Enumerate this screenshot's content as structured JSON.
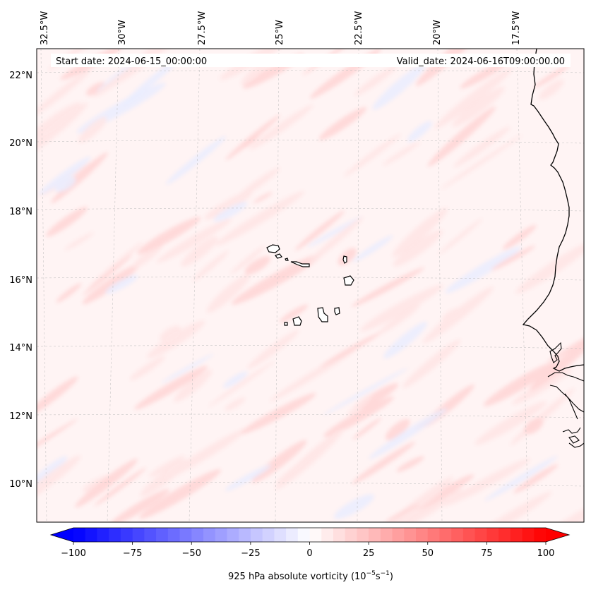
{
  "map": {
    "start_label": "Start date: 2024-06-15_00:00:00",
    "valid_label": "Valid_date: 2024-06-16T09:00:00.00",
    "lon_labels": [
      "32.5°W",
      "30°W",
      "27.5°W",
      "25°W",
      "22.5°W",
      "20°W",
      "17.5°W"
    ],
    "lat_labels": [
      "22°N",
      "20°N",
      "18°N",
      "16°N",
      "14°N",
      "12°N",
      "10°N"
    ],
    "colors": {
      "positive": "#ff0000",
      "negative": "#0000ff",
      "background_field": "#fff4f4",
      "coastline": "#000000"
    }
  },
  "colorbar": {
    "label_prefix": "925 hPa absolute vorticity (10",
    "label_exp1": "−5",
    "label_mid": "s",
    "label_exp2": "−1",
    "label_suffix": ")",
    "range": [
      -100,
      100
    ],
    "ticks": [
      "−100",
      "−75",
      "−50",
      "−25",
      "0",
      "25",
      "50",
      "75",
      "100"
    ],
    "cmap": "bwr"
  }
}
